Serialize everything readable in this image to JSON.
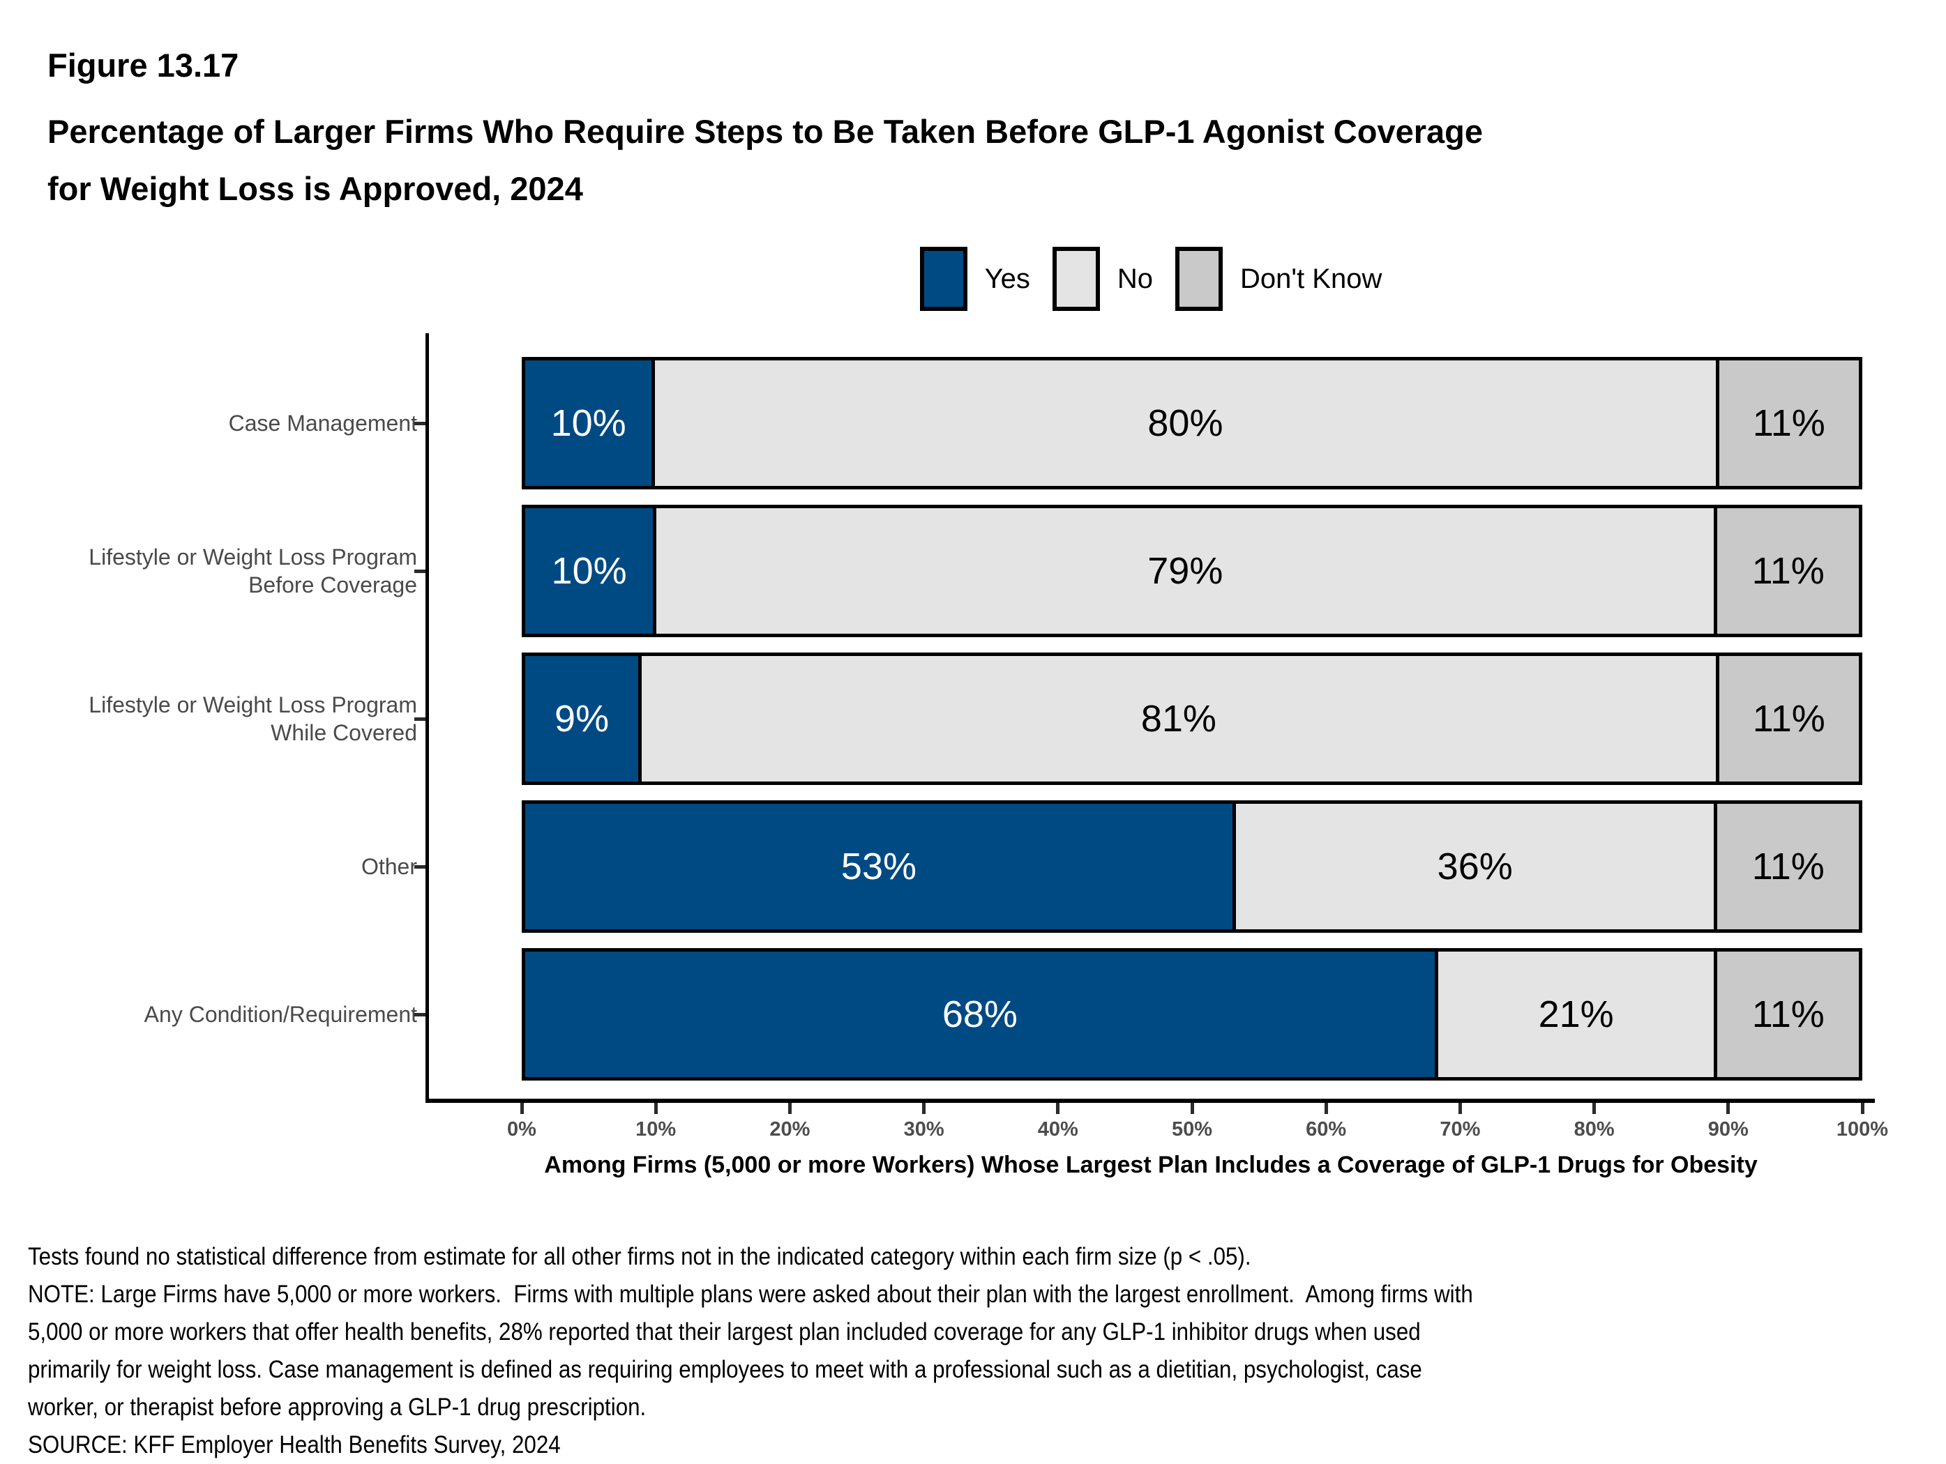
{
  "figure_label": "Figure 13.17",
  "title_lines": [
    "Percentage of Larger Firms Who Require Steps to Be Taken Before GLP-1 Agonist Coverage",
    "for Weight Loss is Approved, 2024"
  ],
  "colors": {
    "yes": "#004a84",
    "no": "#e4e4e4",
    "dont_know": "#c9c9c9",
    "axis": "#000000",
    "category_label": "#4a4a4a",
    "tick_label": "#4d4d4d"
  },
  "legend": {
    "items": [
      {
        "label": "Yes",
        "color": "#004a84"
      },
      {
        "label": "No",
        "color": "#e4e4e4"
      },
      {
        "label": "Don't Know",
        "color": "#c9c9c9"
      }
    ]
  },
  "chart_data": {
    "type": "bar",
    "orientation": "horizontal-stacked",
    "title": "Percentage of Larger Firms Who Require Steps to Be Taken Before GLP-1 Agonist Coverage for Weight Loss is Approved, 2024",
    "categories": [
      "Case Management",
      "Lifestyle or Weight Loss Program Before Coverage",
      "Lifestyle or Weight Loss Program While Covered",
      "Other",
      "Any Condition/Requirement"
    ],
    "categories_lines": [
      [
        "Case Management"
      ],
      [
        "Lifestyle or Weight Loss Program",
        "Before Coverage"
      ],
      [
        "Lifestyle or Weight Loss Program",
        "While Covered"
      ],
      [
        "Other"
      ],
      [
        "Any Condition/Requirement"
      ]
    ],
    "series": [
      {
        "name": "Yes",
        "color": "#004a84",
        "text_color": "#ffffff",
        "values": [
          10,
          10,
          9,
          53,
          68
        ]
      },
      {
        "name": "No",
        "color": "#e4e4e4",
        "text_color": "#000000",
        "values": [
          80,
          79,
          81,
          36,
          21
        ]
      },
      {
        "name": "Don't Know",
        "color": "#c9c9c9",
        "text_color": "#000000",
        "values": [
          11,
          11,
          11,
          11,
          11
        ]
      }
    ],
    "value_suffix": "%",
    "xlim": [
      0,
      100
    ],
    "x_ticks": [
      "0%",
      "10%",
      "20%",
      "30%",
      "40%",
      "50%",
      "60%",
      "70%",
      "80%",
      "90%",
      "100%"
    ],
    "xlabel": "Among Firms (5,000 or more Workers) Whose Largest Plan Includes a Coverage of GLP-1 Drugs for Obesity",
    "legend_position": "top-center",
    "grid": false
  },
  "footnotes": [
    "Tests found no statistical difference from estimate for all other firms not in the indicated category within each firm size (p < .05).",
    "NOTE: Large Firms have 5,000 or more workers.  Firms with multiple plans were asked about their plan with the largest enrollment.  Among firms with",
    "5,000 or more workers that offer health benefits, 28% reported that their largest plan included coverage for any GLP-1 inhibitor drugs when used",
    "primarily for weight loss. Case management is defined as requiring employees to meet with a professional such as a dietitian, psychologist, case",
    "worker, or therapist before approving a GLP-1 drug prescription.",
    "SOURCE: KFF Employer Health Benefits Survey, 2024"
  ]
}
